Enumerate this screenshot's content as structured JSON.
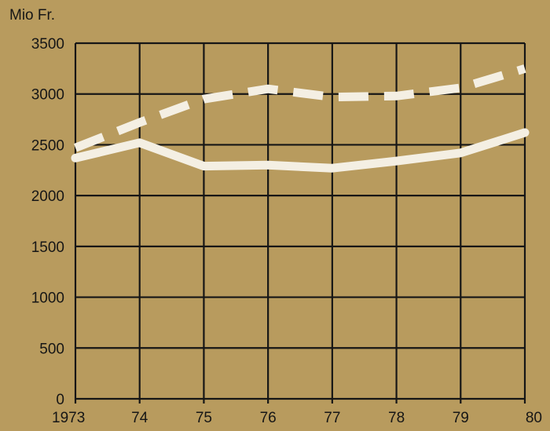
{
  "colors": {
    "background": "#b89b5e",
    "grid": "#161616",
    "text": "#161616",
    "series_line": "#f4efe3"
  },
  "chart_data": {
    "type": "line",
    "ylabel": "Mio Fr.",
    "xlim": [
      1973,
      1980
    ],
    "ylim": [
      0,
      3500
    ],
    "grid": true,
    "x": [
      1973,
      1974,
      1975,
      1976,
      1977,
      1978,
      1979,
      1980
    ],
    "x_tick_labels": [
      "1973",
      "74",
      "75",
      "76",
      "77",
      "78",
      "79",
      "80"
    ],
    "y_ticks": [
      0,
      500,
      1000,
      1500,
      2000,
      2500,
      3000,
      3500
    ],
    "series": [
      {
        "style": "dashed",
        "values": [
          2470,
          2720,
          2950,
          3050,
          2970,
          2980,
          3060,
          3250
        ]
      },
      {
        "style": "solid",
        "values": [
          2370,
          2520,
          2290,
          2300,
          2270,
          2340,
          2420,
          2620
        ]
      }
    ]
  }
}
